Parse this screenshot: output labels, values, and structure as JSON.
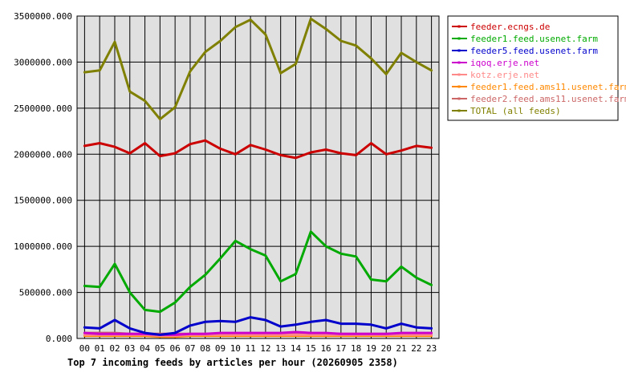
{
  "chart_data": {
    "type": "line",
    "title": "Top 7 incoming feeds by articles per hour (20260905 2358)",
    "categories": [
      "00",
      "01",
      "02",
      "03",
      "04",
      "05",
      "06",
      "07",
      "08",
      "09",
      "10",
      "11",
      "12",
      "13",
      "14",
      "15",
      "16",
      "17",
      "18",
      "19",
      "20",
      "21",
      "22",
      "23"
    ],
    "y_tick_labels": [
      "0.000",
      "500000.000",
      "1000000.000",
      "1500000.000",
      "2000000.000",
      "2500000.000",
      "3000000.000",
      "3500000.000"
    ],
    "ylim": [
      0,
      3500000
    ],
    "grid": true,
    "legend_position": "right",
    "plot_background": "#e0e0e0",
    "series": [
      {
        "name": "feeder.ecngs.de",
        "color": "#cc0000",
        "values": [
          2090000,
          2120000,
          2080000,
          2010000,
          2120000,
          1980000,
          2010000,
          2110000,
          2150000,
          2060000,
          2000000,
          2100000,
          2050000,
          1990000,
          1960000,
          2020000,
          2050000,
          2010000,
          1990000,
          2120000,
          2000000,
          2040000,
          2090000,
          2070000
        ]
      },
      {
        "name": "feeder1.feed.usenet.farm",
        "color": "#00aa00",
        "values": [
          570000,
          560000,
          810000,
          500000,
          310000,
          290000,
          390000,
          560000,
          690000,
          870000,
          1060000,
          970000,
          900000,
          620000,
          700000,
          1160000,
          1000000,
          920000,
          890000,
          640000,
          620000,
          780000,
          660000,
          580000
        ]
      },
      {
        "name": "feeder5.feed.usenet.farm",
        "color": "#0000cc",
        "values": [
          120000,
          110000,
          200000,
          110000,
          60000,
          40000,
          60000,
          140000,
          180000,
          190000,
          180000,
          230000,
          200000,
          130000,
          150000,
          180000,
          200000,
          160000,
          160000,
          150000,
          110000,
          160000,
          120000,
          110000
        ]
      },
      {
        "name": "iqoq.erje.net",
        "color": "#cc00cc",
        "values": [
          60000,
          50000,
          50000,
          50000,
          50000,
          40000,
          40000,
          50000,
          50000,
          60000,
          60000,
          60000,
          60000,
          60000,
          70000,
          60000,
          60000,
          50000,
          50000,
          50000,
          50000,
          60000,
          60000,
          60000
        ]
      },
      {
        "name": "kotz.erje.net",
        "color": "#ff8888",
        "values": [
          40000,
          40000,
          40000,
          40000,
          40000,
          30000,
          30000,
          40000,
          40000,
          40000,
          40000,
          40000,
          40000,
          40000,
          40000,
          40000,
          40000,
          40000,
          40000,
          40000,
          40000,
          40000,
          40000,
          40000
        ]
      },
      {
        "name": "feeder1.feed.ams11.usenet.farm",
        "color": "#ff8800",
        "values": [
          30000,
          30000,
          30000,
          30000,
          30000,
          20000,
          20000,
          30000,
          30000,
          30000,
          30000,
          30000,
          30000,
          30000,
          30000,
          30000,
          30000,
          30000,
          30000,
          30000,
          30000,
          30000,
          30000,
          30000
        ]
      },
      {
        "name": "feeder2.feed.ams11.usenet.farm",
        "color": "#cc6666",
        "values": [
          60000,
          60000,
          60000,
          50000,
          50000,
          50000,
          50000,
          50000,
          50000,
          50000,
          50000,
          50000,
          50000,
          50000,
          50000,
          50000,
          50000,
          50000,
          50000,
          50000,
          50000,
          50000,
          50000,
          50000
        ]
      },
      {
        "name": "TOTAL (all feeds)",
        "color": "#808000",
        "values": [
          2890000,
          2910000,
          3220000,
          2680000,
          2580000,
          2380000,
          2510000,
          2900000,
          3110000,
          3230000,
          3380000,
          3460000,
          3300000,
          2880000,
          2980000,
          3470000,
          3360000,
          3230000,
          3180000,
          3040000,
          2870000,
          3100000,
          3000000,
          2910000
        ]
      }
    ]
  }
}
